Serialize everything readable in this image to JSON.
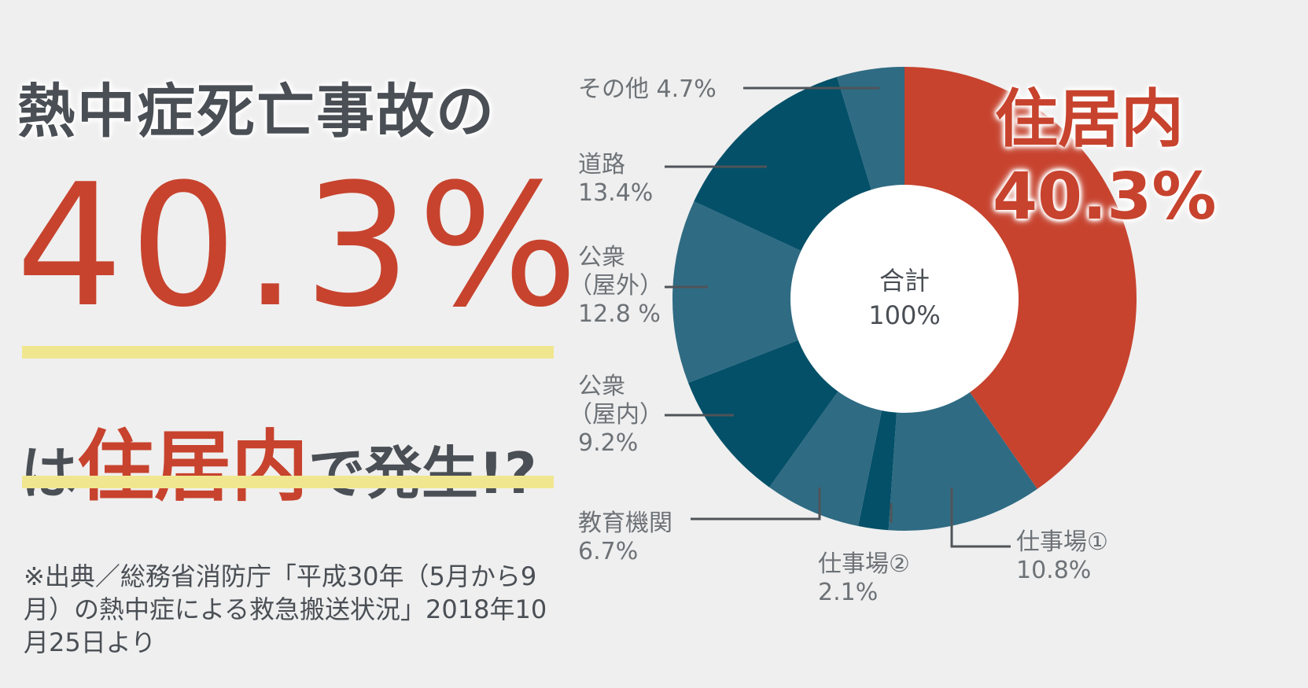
{
  "headline": "熱中症死亡事故の",
  "big_number": "40.3%",
  "subline": {
    "pre": "は",
    "highlight": "住居内",
    "post": "で発生!?"
  },
  "source_note": "※出典／総務省消防庁「平成30年（5月から9月）の熱中症による救急搬送状況」2018年10月25日より",
  "highlight_label": {
    "name": "住居内",
    "value": "40.3%"
  },
  "center": {
    "label": "合計",
    "value": "100%"
  },
  "labels": {
    "other": {
      "name": "その他",
      "value": "4.7%"
    },
    "road": {
      "name": "道路",
      "value": "13.4%"
    },
    "public_out": {
      "name1": "公衆",
      "name2": "（屋外）",
      "value": "12.8 %"
    },
    "public_in": {
      "name1": "公衆",
      "name2": "（屋内）",
      "value": "9.2%"
    },
    "education": {
      "name": "教育機関",
      "value": "6.7%"
    },
    "work2": {
      "name": "仕事場②",
      "value": "2.1%"
    },
    "work1": {
      "name": "仕事場①",
      "value": "10.8%"
    }
  },
  "colors": {
    "accent": "#c7432e",
    "dark_teal": "#045068",
    "light_teal": "#2f6b83",
    "underline": "#f0e68f"
  },
  "chart_data": {
    "type": "pie",
    "donut": true,
    "slices": [
      {
        "name": "住居内",
        "value": 40.3,
        "color": "#c7432e"
      },
      {
        "name": "仕事場①",
        "value": 10.8,
        "color": "#2f6b83"
      },
      {
        "name": "仕事場②",
        "value": 2.1,
        "color": "#045068"
      },
      {
        "name": "教育機関",
        "value": 6.7,
        "color": "#2f6b83"
      },
      {
        "name": "公衆（屋内）",
        "value": 9.2,
        "color": "#045068"
      },
      {
        "name": "公衆（屋外）",
        "value": 12.8,
        "color": "#2f6b83"
      },
      {
        "name": "道路",
        "value": 13.4,
        "color": "#045068"
      },
      {
        "name": "その他",
        "value": 4.7,
        "color": "#2f6b83"
      }
    ]
  }
}
